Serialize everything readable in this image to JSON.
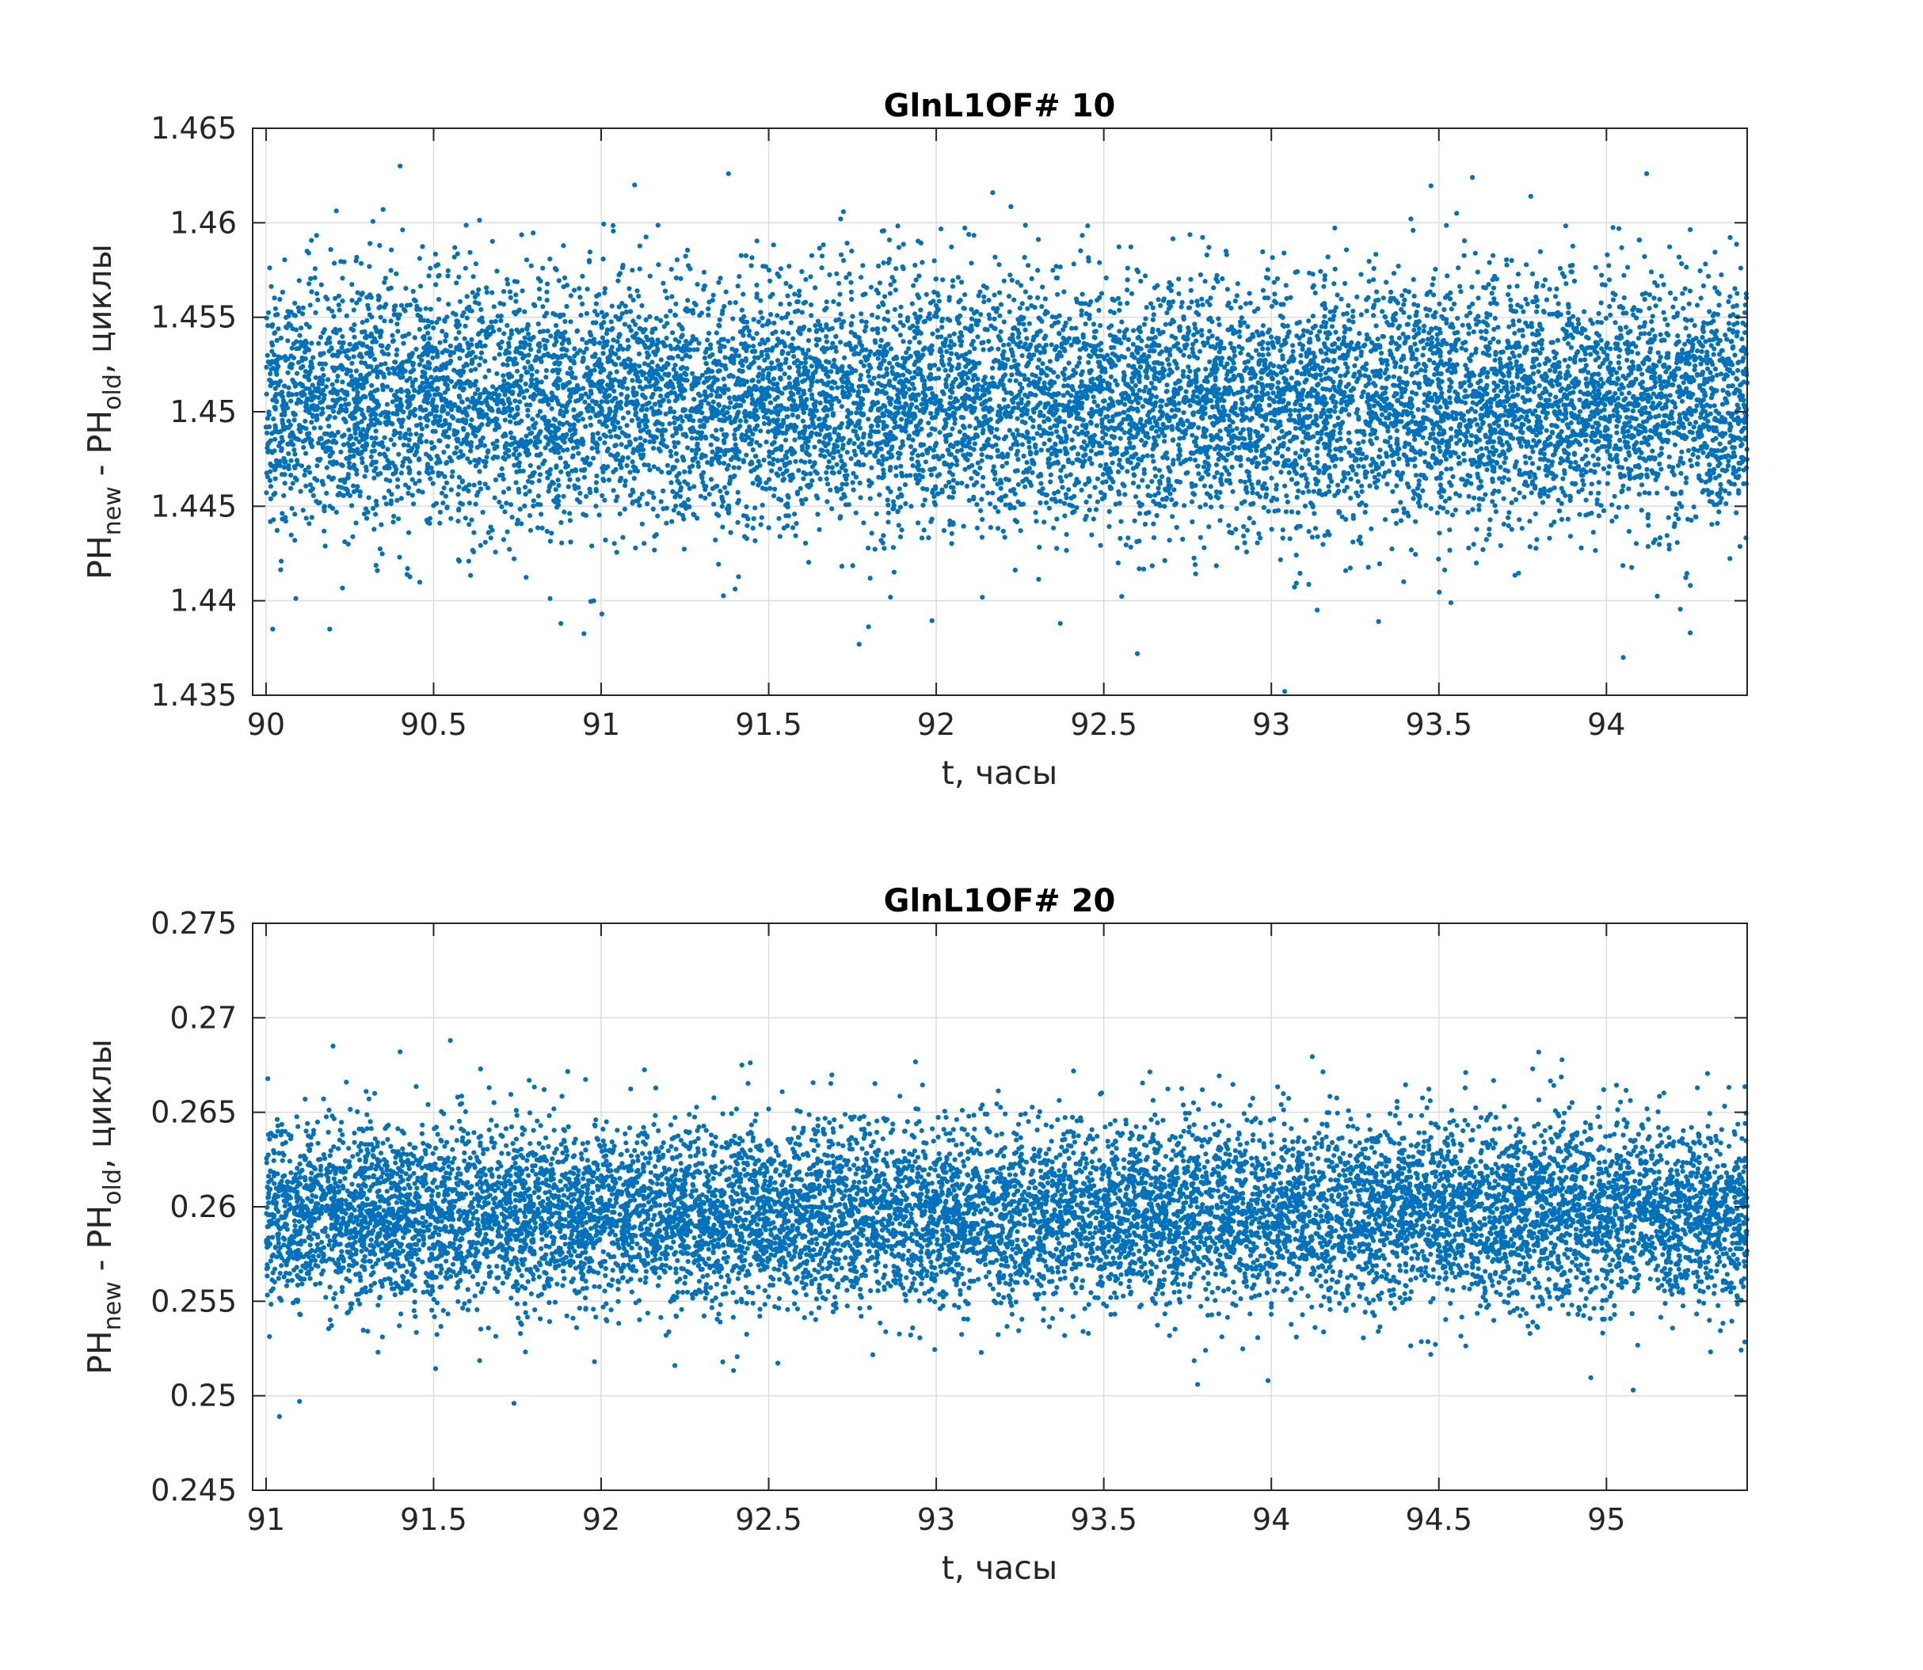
{
  "chart_data": [
    {
      "type": "scatter",
      "title": "GlnL1OF# 10",
      "xlabel": "t, часы",
      "ylabel_parts": [
        "PH",
        "new",
        " - PH",
        "old",
        ", циклы"
      ],
      "xlim": [
        89.96,
        94.42
      ],
      "ylim": [
        1.435,
        1.465
      ],
      "xticks": [
        90,
        90.5,
        91,
        91.5,
        92,
        92.5,
        93,
        93.5,
        94
      ],
      "xtick_labels": [
        "90",
        "90.5",
        "91",
        "91.5",
        "92",
        "92.5",
        "93",
        "93.5",
        "94"
      ],
      "yticks": [
        1.435,
        1.44,
        1.445,
        1.45,
        1.455,
        1.46,
        1.465
      ],
      "ytick_labels": [
        "1.435",
        "1.44",
        "1.445",
        "1.45",
        "1.455",
        "1.46",
        "1.465"
      ],
      "grid": true,
      "marker_color": "#0072BD",
      "series": [
        {
          "x_start": 90.0,
          "x_end": 94.42,
          "points": 11000,
          "center": 1.4505,
          "std": 0.0033,
          "y_min_observed": 1.4352,
          "y_max_observed": 1.463
        }
      ],
      "outliers": [
        {
          "x": 90.4,
          "y": 1.463
        },
        {
          "x": 91.38,
          "y": 1.4626
        },
        {
          "x": 93.6,
          "y": 1.4624
        },
        {
          "x": 94.12,
          "y": 1.4626
        },
        {
          "x": 91.1,
          "y": 1.462
        },
        {
          "x": 93.04,
          "y": 1.4352
        },
        {
          "x": 94.05,
          "y": 1.437
        },
        {
          "x": 92.6,
          "y": 1.4372
        },
        {
          "x": 91.77,
          "y": 1.4377
        },
        {
          "x": 90.02,
          "y": 1.4385
        },
        {
          "x": 90.19,
          "y": 1.4385
        },
        {
          "x": 94.25,
          "y": 1.4383
        },
        {
          "x": 90.88,
          "y": 1.4388
        },
        {
          "x": 92.37,
          "y": 1.4388
        },
        {
          "x": 93.32,
          "y": 1.4389
        }
      ]
    },
    {
      "type": "scatter",
      "title": "GlnL1OF# 20",
      "xlabel": "t, часы",
      "ylabel_parts": [
        "PH",
        "new",
        " - PH",
        "old",
        ", циклы"
      ],
      "xlim": [
        90.96,
        95.42
      ],
      "ylim": [
        0.245,
        0.275
      ],
      "xticks": [
        91,
        91.5,
        92,
        92.5,
        93,
        93.5,
        94,
        94.5,
        95
      ],
      "xtick_labels": [
        "91",
        "91.5",
        "92",
        "92.5",
        "93",
        "93.5",
        "94",
        "94.5",
        "95"
      ],
      "yticks": [
        0.245,
        0.25,
        0.255,
        0.26,
        0.265,
        0.27,
        0.275
      ],
      "ytick_labels": [
        "0.245",
        "0.25",
        "0.255",
        "0.26",
        "0.265",
        "0.27",
        "0.275"
      ],
      "grid": true,
      "marker_color": "#0072BD",
      "series": [
        {
          "x_start": 91.0,
          "x_end": 95.42,
          "points": 11000,
          "center": 0.2596,
          "std": 0.0024,
          "y_min_observed": 0.2489,
          "y_max_observed": 0.2688
        }
      ],
      "outliers": [
        {
          "x": 91.04,
          "y": 0.2489
        },
        {
          "x": 91.1,
          "y": 0.2497
        },
        {
          "x": 91.74,
          "y": 0.2496
        },
        {
          "x": 91.55,
          "y": 0.2688
        },
        {
          "x": 91.2,
          "y": 0.2685
        },
        {
          "x": 91.4,
          "y": 0.2682
        },
        {
          "x": 95.08,
          "y": 0.2503
        },
        {
          "x": 93.78,
          "y": 0.2506
        },
        {
          "x": 93.99,
          "y": 0.2508
        },
        {
          "x": 91.98,
          "y": 0.2518
        },
        {
          "x": 92.22,
          "y": 0.2516
        },
        {
          "x": 91.83,
          "y": 0.2662
        },
        {
          "x": 94.78,
          "y": 0.2673
        },
        {
          "x": 94.58,
          "y": 0.2671
        },
        {
          "x": 92.42,
          "y": 0.2675
        }
      ]
    }
  ]
}
